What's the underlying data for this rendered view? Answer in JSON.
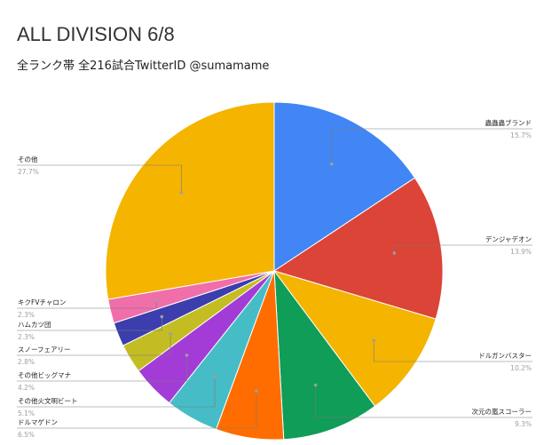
{
  "chart_data": {
    "type": "pie",
    "title": "ALL DIVISION 6/8",
    "subtitle": "全ランク帯 全216試合TwitterID @sumamame",
    "slices": [
      {
        "label": "蟲蟲蟲ブランド",
        "value": 15.7,
        "pct_label": "15.7%",
        "color": "#4285f4"
      },
      {
        "label": "デンジャデオン",
        "value": 13.9,
        "pct_label": "13.9%",
        "color": "#db4437"
      },
      {
        "label": "ドルガンバスター",
        "value": 10.2,
        "pct_label": "10.2%",
        "color": "#f4b400"
      },
      {
        "label": "次元の嵐スコーラー",
        "value": 9.3,
        "pct_label": "9.3%",
        "color": "#0f9d58"
      },
      {
        "label": "ドルマゲドン",
        "value": 6.5,
        "pct_label": "6.5%",
        "color": "#ff6d00"
      },
      {
        "label": "その他火文明ビート",
        "value": 5.1,
        "pct_label": "5.1%",
        "color": "#46bdc6"
      },
      {
        "label": "その他ビッグマナ",
        "value": 4.2,
        "pct_label": "4.2%",
        "color": "#a33cd6"
      },
      {
        "label": "スノーフェアリー",
        "value": 2.8,
        "pct_label": "2.8%",
        "color": "#c3bd23"
      },
      {
        "label": "ハムカツ団",
        "value": 2.3,
        "pct_label": "2.3%",
        "color": "#3b3eac"
      },
      {
        "label": "キクFVチャロン",
        "value": 2.3,
        "pct_label": "2.3%",
        "color": "#f06eaa"
      },
      {
        "label": "その他",
        "value": 27.7,
        "pct_label": "27.7%",
        "color": "#f4b400"
      }
    ]
  }
}
